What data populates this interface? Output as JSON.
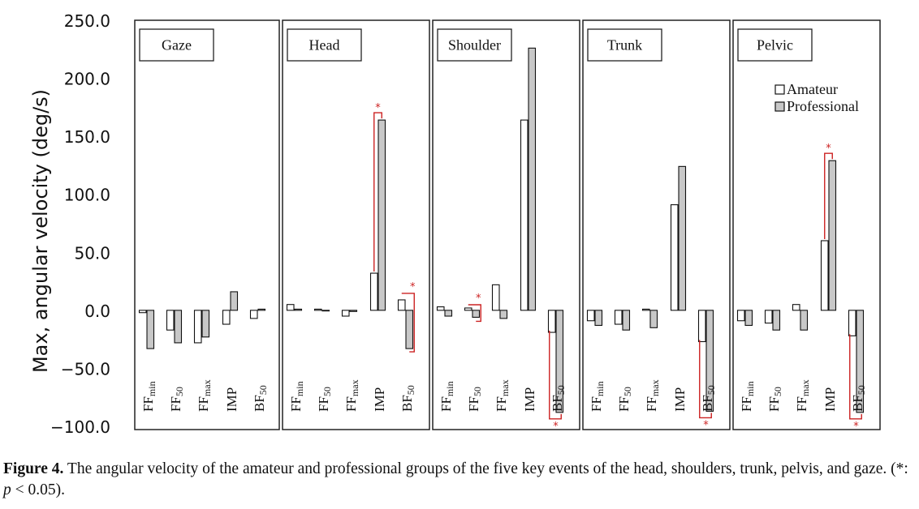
{
  "chart_data": {
    "type": "bar",
    "ylabel": "Max, angular velocity (deg/s)",
    "ylim": [
      -100,
      250
    ],
    "yticks": [
      "250.0",
      "200.0",
      "150.0",
      "100.0",
      "50.0",
      "0.0",
      "−50.0",
      "−100.0"
    ],
    "ytick_values": [
      250,
      200,
      150,
      100,
      50,
      0,
      -50,
      -100
    ],
    "legend": {
      "placement": "top-right of last panel",
      "entries": [
        "Amateur",
        "Professional"
      ]
    },
    "series_colors": {
      "Amateur": "#ffffff",
      "Professional": "#c8c8c8"
    },
    "significance_color": "#cc2222",
    "significance_symbol": "*",
    "categories": [
      {
        "main": "FF",
        "sub": "min"
      },
      {
        "main": "FF",
        "sub": "50"
      },
      {
        "main": "FF",
        "sub": "max"
      },
      {
        "main": "IMP",
        "sub": ""
      },
      {
        "main": "BF",
        "sub": "50"
      }
    ],
    "panels": [
      {
        "title": "Gaze",
        "amateur": [
          -2,
          -17,
          -28,
          -12,
          -7
        ],
        "professional": [
          -33,
          -28,
          -23,
          16,
          1
        ],
        "significant": [
          false,
          false,
          false,
          false,
          false
        ]
      },
      {
        "title": "Head",
        "amateur": [
          5,
          1,
          -5,
          32,
          9
        ],
        "professional": [
          1,
          0,
          -1,
          164,
          -33
        ],
        "significant": [
          false,
          false,
          false,
          true,
          true
        ]
      },
      {
        "title": "Shoulder",
        "amateur": [
          3,
          2,
          22,
          164,
          -19
        ],
        "professional": [
          -5,
          -6,
          -7,
          226,
          -88
        ],
        "significant": [
          false,
          true,
          false,
          false,
          true
        ]
      },
      {
        "title": "Trunk",
        "amateur": [
          -9,
          -12,
          1,
          91,
          -27
        ],
        "professional": [
          -13,
          -17,
          -15,
          124,
          -87
        ],
        "significant": [
          false,
          false,
          false,
          false,
          true
        ]
      },
      {
        "title": "Pelvic",
        "amateur": [
          -9,
          -11,
          5,
          60,
          -22
        ],
        "professional": [
          -13,
          -17,
          -17,
          129,
          -88
        ],
        "significant": [
          false,
          false,
          false,
          true,
          true
        ]
      }
    ]
  },
  "caption": {
    "label": "Figure 4.",
    "text_pre": " The angular velocity of the amateur and professional groups of the five key events of the head, shoulders, trunk, pelvis, and gaze. (*: ",
    "p_symbol": "p",
    "text_post": " < 0.05)."
  }
}
